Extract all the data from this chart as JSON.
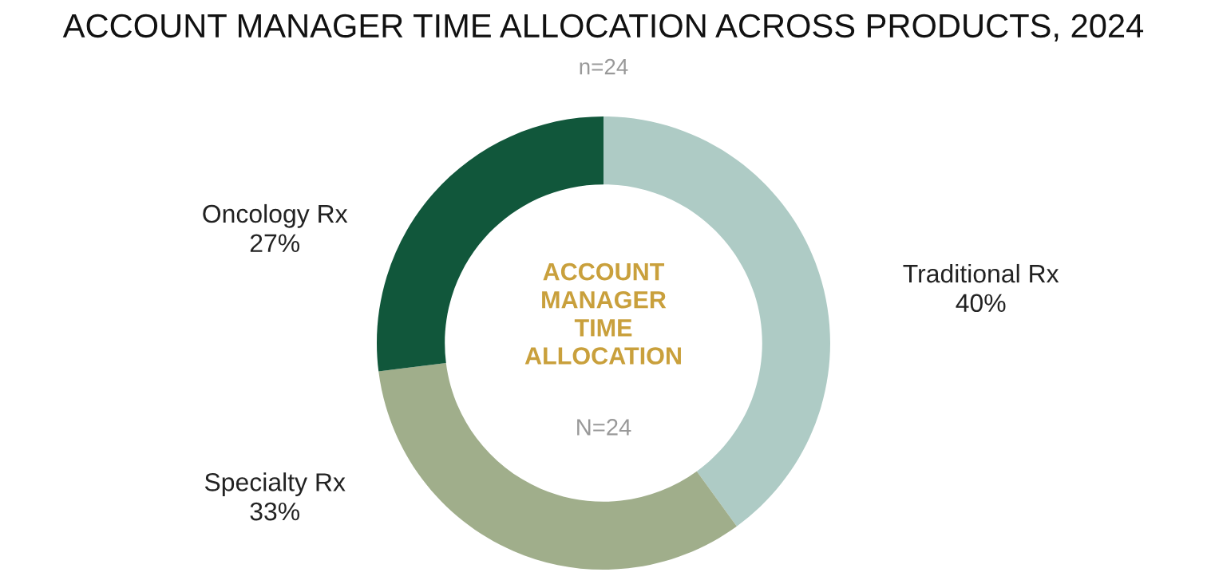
{
  "chart_data": {
    "type": "donut",
    "title": "ACCOUNT MANAGER TIME ALLOCATION ACROSS PRODUCTS, 2024",
    "subtitle": "n=24",
    "categories": [
      "Traditional Rx",
      "Specialty Rx",
      "Oncology Rx"
    ],
    "values": [
      40,
      33,
      27
    ],
    "colors": [
      "#aecbc5",
      "#a0ae8b",
      "#11573b"
    ],
    "value_labels": [
      "40%",
      "33%",
      "27%"
    ],
    "legend": false,
    "annotations": [
      "ACCOUNT\nMANAGER\nTIME\nALLOCATION",
      "N=24"
    ]
  }
}
